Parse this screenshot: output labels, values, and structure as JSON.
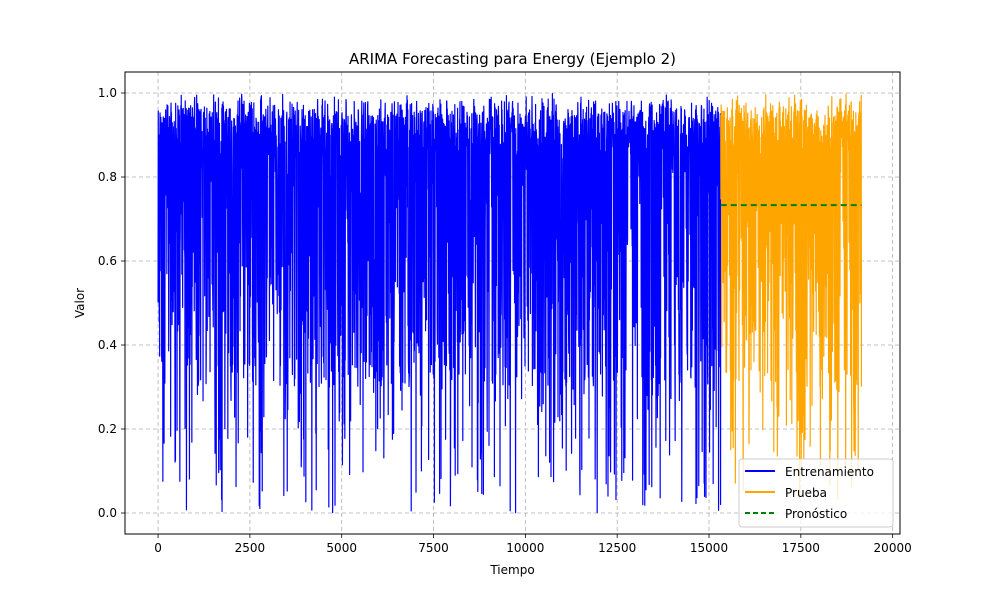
{
  "chart_data": {
    "type": "line",
    "title": "ARIMA Forecasting para Energy (Ejemplo 2)",
    "xlabel": "Tiempo",
    "ylabel": "Valor",
    "xlim": [
      -900,
      20200
    ],
    "ylim": [
      -0.05,
      1.05
    ],
    "x_ticks": [
      0,
      2500,
      5000,
      7500,
      10000,
      12500,
      15000,
      17500,
      20000
    ],
    "x_tick_labels": [
      "0",
      "2500",
      "5000",
      "7500",
      "10000",
      "12500",
      "15000",
      "17500",
      "20000"
    ],
    "y_ticks": [
      0.0,
      0.2,
      0.4,
      0.6,
      0.8,
      1.0
    ],
    "y_tick_labels": [
      "0.0",
      "0.2",
      "0.4",
      "0.6",
      "0.8",
      "1.0"
    ],
    "grid": true,
    "legend_position": "lower-right",
    "series": [
      {
        "name": "Entrenamiento",
        "color": "#0000ff",
        "style": "solid",
        "x_range": [
          0,
          15320
        ],
        "y_range": [
          0.0,
          1.0
        ],
        "typical_range": [
          0.3,
          0.96
        ]
      },
      {
        "name": "Prueba",
        "color": "#ffa500",
        "style": "solid",
        "x_range": [
          15320,
          19150
        ],
        "y_range": [
          0.03,
          1.0
        ],
        "typical_range": [
          0.3,
          0.96
        ]
      },
      {
        "name": "Pronóstico",
        "color": "#008000",
        "style": "dashed",
        "x": [
          15320,
          19150
        ],
        "values": [
          0.733,
          0.733
        ]
      }
    ]
  }
}
